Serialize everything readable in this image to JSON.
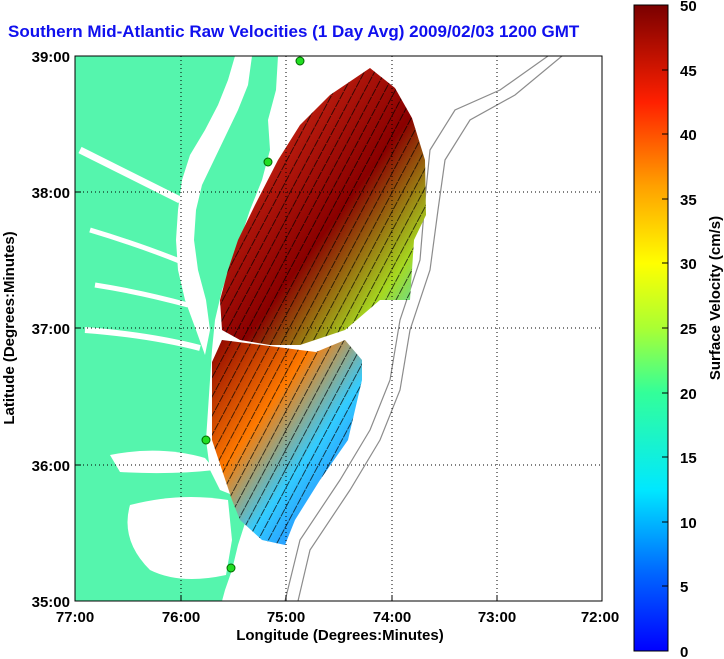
{
  "title": "Southern Mid-Atlantic Raw Velocities (1 Day Avg) 2009/02/03 1200 GMT",
  "xlabel": "Longitude (Degrees:Minutes)",
  "ylabel": "Latitude (Degrees:Minutes)",
  "colorbar_label": "Surface Velocity (cm/s)",
  "x_ticks": [
    "77:00",
    "76:00",
    "75:00",
    "74:00",
    "73:00",
    "72:00"
  ],
  "y_ticks": [
    "39:00",
    "38:00",
    "37:00",
    "36:00",
    "35:00"
  ],
  "colorbar_ticks": [
    "50",
    "45",
    "40",
    "35",
    "30",
    "25",
    "20",
    "15",
    "10",
    "5",
    "0"
  ],
  "colors": {
    "land": "#55f5ad",
    "water": "#ffffff",
    "title": "#1010ee",
    "grid": "#000000",
    "bathymetry": "#8c8c8c"
  },
  "chart_data": {
    "type": "heatmap",
    "title": "Southern Mid-Atlantic Raw Velocities (1 Day Avg) 2009/02/03 1200 GMT",
    "xlabel": "Longitude (Degrees:Minutes)",
    "ylabel": "Latitude (Degrees:Minutes)",
    "xlim": [
      -77,
      -72
    ],
    "ylim": [
      35,
      39
    ],
    "colorbar": {
      "label": "Surface Velocity (cm/s)",
      "range": [
        0,
        50
      ],
      "colormap": "jet"
    },
    "grid": true
  }
}
